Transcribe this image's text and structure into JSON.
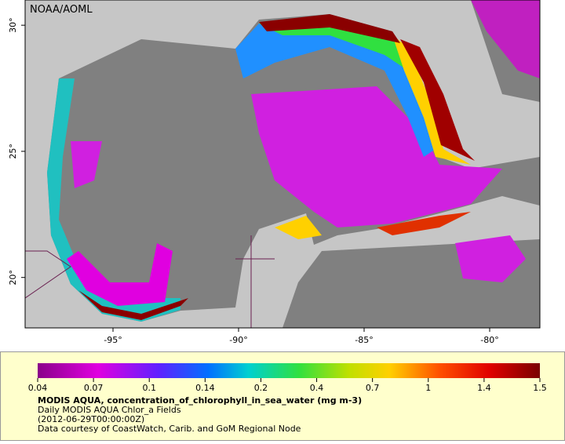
{
  "map": {
    "credit": "NOAA/AOML",
    "xlim": [
      -98.5,
      -78
    ],
    "ylim": [
      18,
      31
    ],
    "lon_ticks": [
      {
        "value": -95,
        "label": "-95°"
      },
      {
        "value": -90,
        "label": "-90°"
      },
      {
        "value": -85,
        "label": "-85°"
      },
      {
        "value": -80,
        "label": "-80°"
      }
    ],
    "lat_ticks": [
      {
        "value": 30,
        "label": "30°"
      },
      {
        "value": 25,
        "label": "25°"
      },
      {
        "value": 20,
        "label": "20°"
      }
    ]
  },
  "legend": {
    "colorbar_ticks": [
      0.04,
      0.07,
      0.1,
      0.14,
      0.2,
      0.4,
      0.7,
      1,
      1.4,
      1.5
    ],
    "title": "MODIS AQUA, concentration_of_chlorophyll_in_sea_water (mg m-3)",
    "lines": [
      "Daily MODIS AQUA Chlor_a Fields",
      "(2012-06-29T00:00:00Z)",
      "Data courtesy of CoastWatch, Carib. and GoM Regional Node"
    ]
  }
}
